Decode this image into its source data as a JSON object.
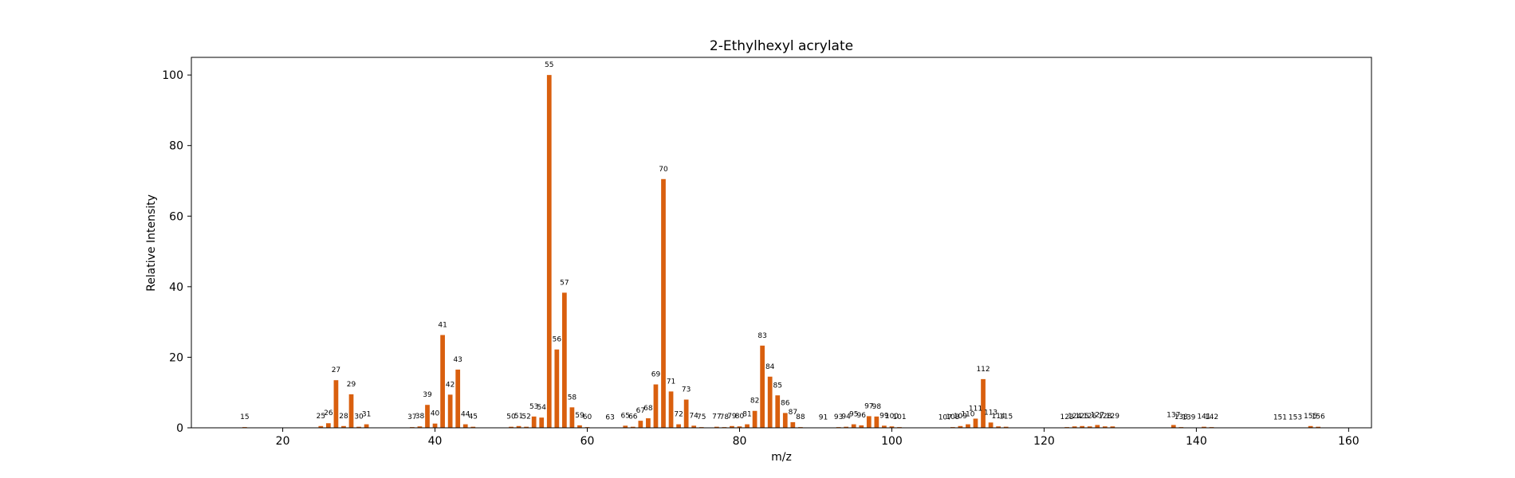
{
  "chart_data": {
    "type": "bar",
    "title": "2-Ethylhexyl acrylate",
    "xlabel": "m/z",
    "ylabel": "Relative Intensity",
    "xlim": [
      8,
      163
    ],
    "ylim": [
      0,
      105
    ],
    "xticks": [
      20,
      40,
      60,
      80,
      100,
      120,
      140,
      160
    ],
    "yticks": [
      0,
      20,
      40,
      60,
      80,
      100
    ],
    "grid": false,
    "bar_color": "#d95f0e",
    "x": [
      15,
      25,
      26,
      27,
      28,
      29,
      30,
      31,
      37,
      38,
      39,
      40,
      41,
      42,
      43,
      44,
      45,
      50,
      51,
      52,
      53,
      54,
      55,
      56,
      57,
      58,
      59,
      60,
      63,
      65,
      66,
      67,
      68,
      69,
      70,
      71,
      72,
      73,
      74,
      75,
      77,
      78,
      79,
      80,
      81,
      82,
      83,
      84,
      85,
      86,
      87,
      88,
      91,
      93,
      94,
      95,
      96,
      97,
      98,
      99,
      100,
      101,
      107,
      108,
      109,
      110,
      111,
      112,
      113,
      114,
      115,
      123,
      124,
      125,
      126,
      127,
      128,
      129,
      137,
      138,
      139,
      141,
      142,
      151,
      153,
      155,
      156
    ],
    "values": [
      0.2,
      0.5,
      1.3,
      13.5,
      0.5,
      9.5,
      0.3,
      1.0,
      0.2,
      0.4,
      6.5,
      1.2,
      26.3,
      9.4,
      16.5,
      1.0,
      0.3,
      0.3,
      0.5,
      0.3,
      3.2,
      2.9,
      100,
      22.2,
      38.3,
      5.8,
      0.7,
      0.2,
      0.1,
      0.6,
      0.3,
      2.0,
      2.7,
      12.3,
      70.5,
      10.3,
      1.0,
      8.0,
      0.6,
      0.2,
      0.3,
      0.2,
      0.5,
      0.4,
      1.0,
      4.8,
      23.3,
      14.5,
      9.2,
      4.2,
      1.6,
      0.2,
      0.1,
      0.2,
      0.3,
      1.0,
      0.7,
      3.3,
      3.2,
      0.6,
      0.4,
      0.2,
      0.1,
      0.2,
      0.5,
      1.0,
      2.6,
      13.8,
      1.5,
      0.4,
      0.3,
      0.2,
      0.4,
      0.5,
      0.4,
      0.8,
      0.4,
      0.4,
      0.8,
      0.2,
      0.1,
      0.3,
      0.2,
      0.1,
      0.1,
      0.5,
      0.3
    ]
  }
}
